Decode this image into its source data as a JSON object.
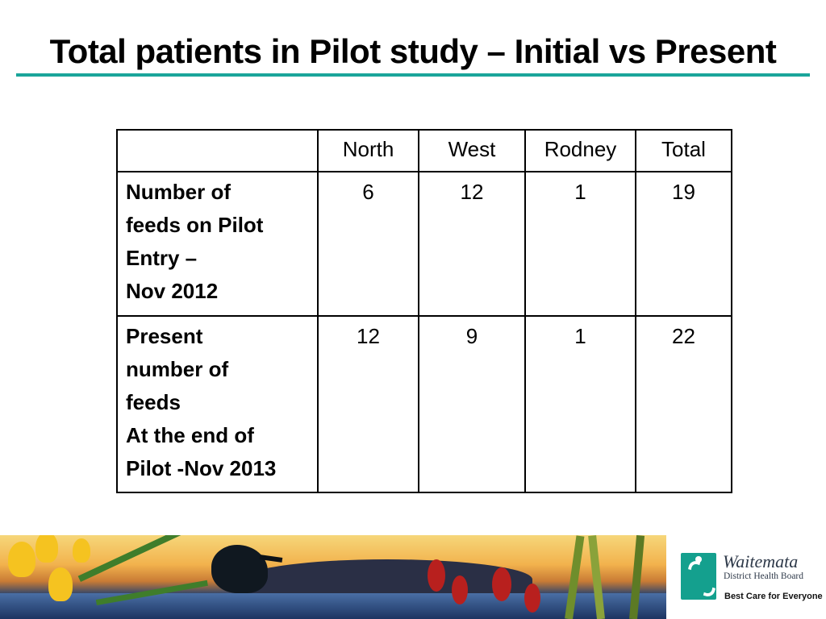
{
  "slide": {
    "title": "Total patients in Pilot study – Initial vs Present"
  },
  "table": {
    "headers": [
      "",
      "North",
      "West",
      "Rodney",
      "Total"
    ],
    "rows": [
      {
        "label_lines": [
          "Number of",
          "feeds on Pilot",
          "Entry –",
          "Nov 2012"
        ],
        "north": "6",
        "west": "12",
        "rodney": "1",
        "total": "19"
      },
      {
        "label_lines": [
          "Present",
          "number of",
          "feeds",
          "At the end of",
          "Pilot -Nov 2013"
        ],
        "north": "12",
        "west": "9",
        "rodney": "1",
        "total": "22"
      }
    ]
  },
  "footer": {
    "org_name": "Waitemata",
    "org_subtitle": "District Health Board",
    "tagline": "Best Care for Everyone",
    "brand_color": "#14a08e",
    "rule_color": "#1aa59a"
  }
}
